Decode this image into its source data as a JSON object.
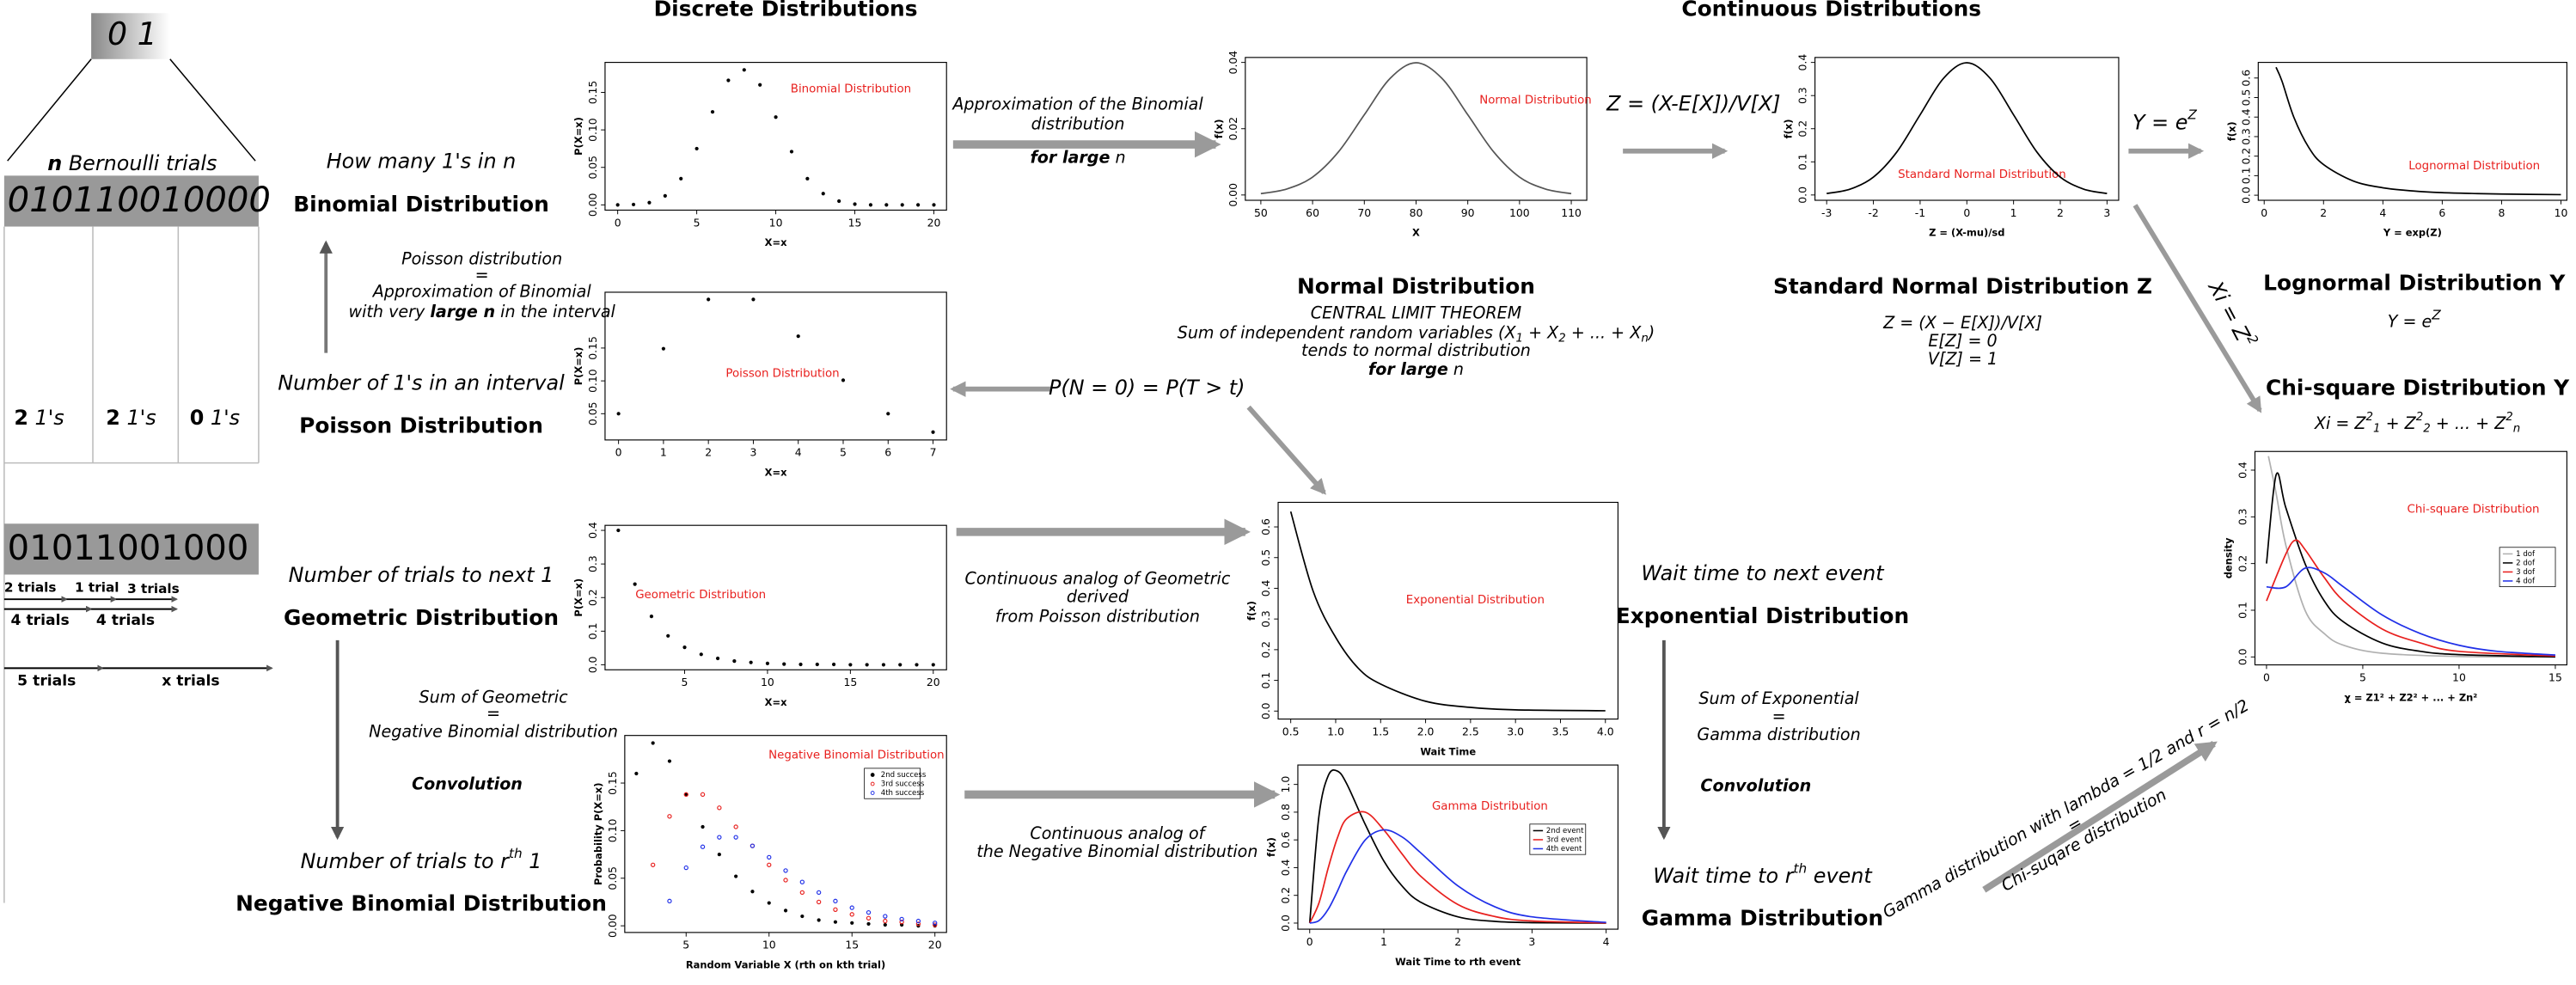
{
  "headers": {
    "discrete": "Discrete Distributions",
    "continuous": "Continuous Distributions"
  },
  "bernoulli": {
    "bits": "0 1",
    "n": "n",
    "trials": " Bernoulli trials",
    "sequence": "010110010000",
    "counts": [
      {
        "count": 2,
        "unit": " 1's"
      },
      {
        "count": 2,
        "unit": " 1's"
      },
      {
        "count": 0,
        "unit": " 1's"
      }
    ],
    "sequence2": "01011001000",
    "steps": [
      "2 trials",
      "1 trial",
      "3 trials",
      "4 trials",
      "4 trials",
      "5 trials",
      "x trials"
    ]
  },
  "texts": {
    "binomial_q": "How many 1's in n",
    "binomial": "Binomial Distribution",
    "poisson_note": [
      "Poisson distribution",
      "=",
      "Approximation of Binomial"
    ],
    "poisson_note_last": [
      "with very ",
      "large n",
      " in the interval"
    ],
    "poisson_q": "Number of 1's in an interval",
    "poisson": "Poisson Distribution",
    "geometric_q": "Number of trials to next 1",
    "geometric": "Geometric Distribution",
    "negbin_note": [
      "Sum of Geometric",
      "=",
      "Negative Binomial distribution"
    ],
    "negbin_conv": "Convolution",
    "negbin_q": [
      "Number of trials to r",
      "th",
      " 1"
    ],
    "negbin": "Negative Binomial Distribution",
    "approx": [
      "Approximation of the Binomial",
      "distribution"
    ],
    "approx_last": [
      "for large",
      " n"
    ],
    "z_transform": "Z = (X-E[X])/V[X]",
    "y_transform": [
      "Y = e",
      "Z"
    ],
    "pn": "P(N = 0) = P(T > t)",
    "geo_analog": [
      "Continuous analog of Geometric",
      "derived",
      "from Poisson distribution"
    ],
    "nb_analog": [
      "Continuous analog of",
      "the Negative Binomial distribution"
    ],
    "normal": "Normal Distribution",
    "clt": "CENTRAL LIMIT THEOREM",
    "clt_sum": [
      "Sum of independent random variables (X",
      "1",
      " + X",
      "2",
      " + ... + X",
      "n",
      ")"
    ],
    "clt_tends": "tends to normal distribution",
    "clt_last": [
      "for large",
      " n"
    ],
    "std_normal": "Standard Normal Distribution Z",
    "std_eq": [
      "Z = (X − E[X])/V[X]",
      "E[Z] = 0",
      "V[Z] = 1"
    ],
    "lognormal": "Lognormal Distribution Y",
    "lognormal_eq": [
      "Y = e",
      "Z"
    ],
    "xi_arrow": [
      "Xi = Z",
      "2"
    ],
    "chi": "Chi-square Distribution Y",
    "chi_eq": [
      "Xi = Z",
      "2",
      "1",
      " + Z",
      "2",
      "2",
      " + ... + Z",
      "2",
      "n"
    ],
    "exp_q": "Wait time to next event",
    "exponential": "Exponential Distribution",
    "gamma_note": [
      "Sum of Exponential",
      "=",
      "Gamma distribution"
    ],
    "gamma_conv": "Convolution",
    "gamma_q": [
      "Wait time to r",
      "th",
      " event"
    ],
    "gamma": "Gamma Distribution",
    "chi_gamma": [
      "Gamma distribution with lambda = 1/2 and r = n/2",
      "=",
      "Chi-suqare distribution"
    ]
  },
  "plots": [
    {
      "type": "scatter",
      "label": "Binomial Distribution",
      "xlabel": "X=x",
      "ylabel": "P(X=x)",
      "xlim": [
        -0.8,
        20.8
      ],
      "ylim": [
        -0.007,
        0.19
      ],
      "xticks": [
        0,
        5,
        10,
        15,
        20
      ],
      "yticks": [
        {
          "value": 0,
          "label": "0.00"
        },
        0.05,
        {
          "value": 0.1,
          "label": "0.10"
        },
        0.15
      ],
      "series": [
        {
          "color": "#000000",
          "x": [
            0,
            1,
            2,
            3,
            4,
            5,
            6,
            7,
            8,
            9,
            10,
            11,
            12,
            13,
            14,
            15,
            16,
            17,
            18,
            19,
            20
          ],
          "values": [
            0,
            0.0005,
            0.003,
            0.012,
            0.035,
            0.075,
            0.124,
            0.166,
            0.18,
            0.16,
            0.117,
            0.071,
            0.035,
            0.015,
            0.005,
            0.001,
            0,
            0,
            0,
            0,
            0
          ]
        }
      ]
    },
    {
      "type": "scatter",
      "label": "Poisson Distribution",
      "xlabel": "X=x",
      "ylabel": "P(X=x)",
      "xlim": [
        -0.3,
        7.3
      ],
      "ylim": [
        0.01,
        0.235
      ],
      "xticks": [
        0,
        1,
        2,
        3,
        4,
        5,
        6,
        7
      ],
      "yticks": [
        0.05,
        {
          "value": 0.1,
          "label": "0.10"
        },
        0.15
      ],
      "series": [
        {
          "color": "#000000",
          "x": [
            0,
            1,
            2,
            3,
            4,
            5,
            6,
            7
          ],
          "values": [
            0.05,
            0.149,
            0.224,
            0.224,
            0.168,
            0.101,
            0.05,
            0.022
          ]
        }
      ]
    },
    {
      "type": "scatter",
      "label": "Geometric Distribution",
      "xlabel": "X=x",
      "ylabel": "P(X=x)",
      "xlim": [
        0.2,
        20.8
      ],
      "ylim": [
        -0.015,
        0.415
      ],
      "xticks": [
        5,
        10,
        15,
        20
      ],
      "yticks": [
        {
          "value": 0,
          "label": "0.0"
        },
        0.1,
        0.2,
        0.3,
        0.4
      ],
      "series": [
        {
          "color": "#000000",
          "x": [
            1,
            2,
            3,
            4,
            5,
            6,
            7,
            8,
            9,
            10,
            11,
            12,
            13,
            14,
            15,
            16,
            17,
            18,
            19,
            20
          ],
          "values": [
            0.4,
            0.24,
            0.144,
            0.086,
            0.052,
            0.031,
            0.019,
            0.011,
            0.007,
            0.004,
            0.002,
            0.001,
            0.001,
            0.001,
            0,
            0,
            0,
            0,
            0,
            0
          ]
        }
      ]
    },
    {
      "type": "scatter",
      "label": "Negative Binomial Distribution",
      "xlabel": "Random Variable X (rth on kth trial)",
      "ylabel": "Probability P(X=x)",
      "xlim": [
        1.3,
        20.7
      ],
      "ylim": [
        -0.007,
        0.2
      ],
      "xticks": [
        5,
        10,
        15,
        20
      ],
      "yticks": [
        {
          "value": 0,
          "label": "0.00"
        },
        0.05,
        {
          "value": 0.1,
          "label": "0.10"
        },
        0.15
      ],
      "series": [
        {
          "name": "2nd success",
          "color": "#000000",
          "x": [
            2,
            3,
            4,
            5,
            6,
            7,
            8,
            9,
            10,
            11,
            12,
            13,
            14,
            15,
            16,
            17,
            18,
            19,
            20
          ],
          "values": [
            0.16,
            0.192,
            0.173,
            0.138,
            0.104,
            0.075,
            0.052,
            0.036,
            0.024,
            0.016,
            0.01,
            0.006,
            0.004,
            0.003,
            0.002,
            0.001,
            0.001,
            0,
            0
          ]
        },
        {
          "name": "3rd success",
          "color": "#e8201e",
          "x": [
            3,
            4,
            5,
            6,
            7,
            8,
            9,
            10,
            11,
            12,
            13,
            14,
            15,
            16,
            17,
            18,
            19,
            20
          ],
          "values": [
            0.064,
            0.115,
            0.138,
            0.138,
            0.124,
            0.104,
            0.084,
            0.064,
            0.048,
            0.035,
            0.025,
            0.017,
            0.012,
            0.008,
            0.005,
            0.004,
            0.002,
            0.001
          ]
        },
        {
          "name": "4th success",
          "color": "#2030e8",
          "x": [
            4,
            5,
            6,
            7,
            8,
            9,
            10,
            11,
            12,
            13,
            14,
            15,
            16,
            17,
            18,
            19,
            20
          ],
          "values": [
            0.026,
            0.061,
            0.083,
            0.093,
            0.093,
            0.084,
            0.072,
            0.058,
            0.046,
            0.035,
            0.026,
            0.019,
            0.014,
            0.01,
            0.007,
            0.005,
            0.003
          ]
        }
      ]
    },
    {
      "type": "line",
      "label": "Normal Distribution",
      "xlabel": "X",
      "ylabel": "f(x)",
      "xlim": [
        47,
        113
      ],
      "ylim": [
        -0.0016,
        0.0415
      ],
      "xticks": [
        50,
        60,
        70,
        80,
        90,
        100,
        110
      ],
      "yticks": [
        {
          "value": 0,
          "label": "0.00"
        },
        0.02,
        0.04
      ],
      "series": [
        {
          "color": "#555555",
          "x": [
            50,
            55,
            60,
            65,
            70,
            75,
            80,
            85,
            90,
            95,
            100,
            105,
            110
          ],
          "values": [
            0.0004,
            0.0018,
            0.0054,
            0.013,
            0.0242,
            0.0352,
            0.0399,
            0.0352,
            0.0242,
            0.013,
            0.0054,
            0.0018,
            0.0004
          ]
        }
      ]
    },
    {
      "type": "line",
      "label": "Standard Normal Distribution",
      "xlabel": "Z = (X-mu)/sd",
      "ylabel": "f(x)",
      "xlim": [
        -3.25,
        3.25
      ],
      "ylim": [
        -0.016,
        0.415
      ],
      "xticks": [
        -3,
        -2,
        -1,
        0,
        1,
        2,
        3
      ],
      "yticks": [
        {
          "value": 0,
          "label": "0.0"
        },
        0.1,
        0.2,
        0.3,
        0.4
      ],
      "series": [
        {
          "color": "#000000",
          "x": [
            -3,
            -2.5,
            -2,
            -1.5,
            -1,
            -0.5,
            0,
            0.5,
            1,
            1.5,
            2,
            2.5,
            3
          ],
          "values": [
            0.0044,
            0.0175,
            0.054,
            0.1295,
            0.242,
            0.352,
            0.399,
            0.352,
            0.242,
            0.1295,
            0.054,
            0.0175,
            0.0044
          ]
        }
      ]
    },
    {
      "type": "line",
      "label": "Lognormal Distribution",
      "xlabel": "Y = exp(Z)",
      "ylabel": "f(x)",
      "xlim": [
        -0.2,
        10.2
      ],
      "ylim": [
        -0.026,
        0.68
      ],
      "xticks": [
        0,
        2,
        4,
        6,
        8,
        10
      ],
      "yticks": [
        {
          "value": 0,
          "label": "0.0"
        },
        0.1,
        0.2,
        0.3,
        0.4,
        0.5,
        0.6
      ],
      "series": [
        {
          "color": "#000000",
          "x": [
            0.4,
            0.6,
            1,
            1.5,
            2,
            3,
            4,
            5,
            6,
            7,
            8,
            10
          ],
          "values": [
            0.655,
            0.584,
            0.399,
            0.245,
            0.157,
            0.073,
            0.038,
            0.022,
            0.013,
            0.009,
            0.006,
            0.003
          ]
        }
      ]
    },
    {
      "type": "line",
      "label": "Exponential Distribution",
      "xlabel": "Wait Time",
      "ylabel": "f(x)",
      "xlim": [
        0.36,
        4.14
      ],
      "ylim": [
        -0.026,
        0.68
      ],
      "xticks": [
        0.5,
        {
          "value": 1,
          "label": "1.0"
        },
        1.5,
        {
          "value": 2,
          "label": "2.0"
        },
        2.5,
        {
          "value": 3,
          "label": "3.0"
        },
        3.5,
        {
          "value": 4,
          "label": "4.0"
        }
      ],
      "yticks": [
        {
          "value": 0,
          "label": "0.0"
        },
        0.1,
        0.2,
        0.3,
        0.4,
        0.5,
        0.6
      ],
      "series": [
        {
          "color": "#000000",
          "x": [
            0.5,
            0.75,
            1,
            1.25,
            1.5,
            2,
            2.5,
            3,
            4
          ],
          "values": [
            0.65,
            0.39,
            0.24,
            0.14,
            0.088,
            0.032,
            0.012,
            0.004,
            0.001
          ]
        }
      ]
    },
    {
      "type": "line",
      "label": "Gamma Distribution",
      "xlabel": "Wait Time to rth event",
      "ylabel": "f(x)",
      "xlim": [
        -0.16,
        4.16
      ],
      "ylim": [
        -0.044,
        1.14
      ],
      "xticks": [
        0,
        1,
        2,
        3,
        4
      ],
      "yticks": [
        {
          "value": 0,
          "label": "0.0"
        },
        0.2,
        0.4,
        0.6,
        0.8,
        {
          "value": 1,
          "label": "1.0"
        }
      ],
      "series": [
        {
          "name": "2nd event",
          "color": "#000000",
          "x": [
            0,
            0.125,
            0.25,
            0.375,
            0.5,
            0.75,
            1,
            1.25,
            1.5,
            2,
            2.5,
            3,
            4
          ],
          "values": [
            0,
            0.773,
            1.063,
            1.096,
            1.004,
            0.711,
            0.448,
            0.265,
            0.15,
            0.045,
            0.012,
            0.003,
            0
          ]
        },
        {
          "name": "3rd event",
          "color": "#e8201e",
          "x": [
            0,
            0.125,
            0.25,
            0.375,
            0.5,
            0.75,
            1,
            1.25,
            1.5,
            2,
            2.5,
            3,
            4
          ],
          "values": [
            0,
            0.145,
            0.398,
            0.616,
            0.753,
            0.8,
            0.672,
            0.496,
            0.337,
            0.134,
            0.047,
            0.015,
            0.001
          ]
        },
        {
          "name": "4th event",
          "color": "#2030e8",
          "x": [
            0,
            0.125,
            0.25,
            0.375,
            0.5,
            0.75,
            1,
            1.25,
            1.5,
            2,
            2.5,
            3,
            4
          ],
          "values": [
            0,
            0.018,
            0.1,
            0.231,
            0.376,
            0.6,
            0.672,
            0.62,
            0.506,
            0.268,
            0.117,
            0.045,
            0.005
          ]
        }
      ]
    },
    {
      "type": "line",
      "label": "Chi-square Distribution",
      "xlabel": "χ = Z1² + Z2² + ... + Zn²",
      "ylabel": "density",
      "xlim": [
        -0.6,
        15.6
      ],
      "ylim": [
        -0.017,
        0.44
      ],
      "xticks": [
        0,
        5,
        10,
        15
      ],
      "yticks": [
        {
          "value": 0,
          "label": "0.0"
        },
        0.1,
        0.2,
        0.3,
        0.4
      ],
      "series": [
        {
          "name": "1 dof",
          "color": "#b0b0b0",
          "x": [
            0.1,
            0.5,
            1,
            2,
            3,
            4,
            6,
            10,
            15
          ],
          "values": [
            0.43,
            0.35,
            0.24,
            0.1,
            0.05,
            0.025,
            0.008,
            0.001,
            0
          ]
        },
        {
          "name": "2 dof",
          "color": "#000000",
          "x": [
            0,
            0.5,
            1,
            2,
            3,
            4,
            6,
            8,
            10,
            15
          ],
          "values": [
            0.2,
            0.39,
            0.32,
            0.2,
            0.12,
            0.075,
            0.03,
            0.012,
            0.005,
            0
          ]
        },
        {
          "name": "3 dof",
          "color": "#e8201e",
          "x": [
            0,
            1,
            1.5,
            2,
            3,
            4,
            6,
            8,
            10,
            15
          ],
          "values": [
            0.12,
            0.22,
            0.25,
            0.23,
            0.17,
            0.12,
            0.06,
            0.03,
            0.012,
            0.002
          ]
        },
        {
          "name": "4 dof",
          "color": "#2030e8",
          "x": [
            0,
            1,
            2,
            3,
            4,
            6,
            8,
            10,
            12,
            15
          ],
          "values": [
            0.15,
            0.15,
            0.19,
            0.18,
            0.15,
            0.09,
            0.05,
            0.025,
            0.012,
            0.004
          ]
        }
      ]
    }
  ]
}
